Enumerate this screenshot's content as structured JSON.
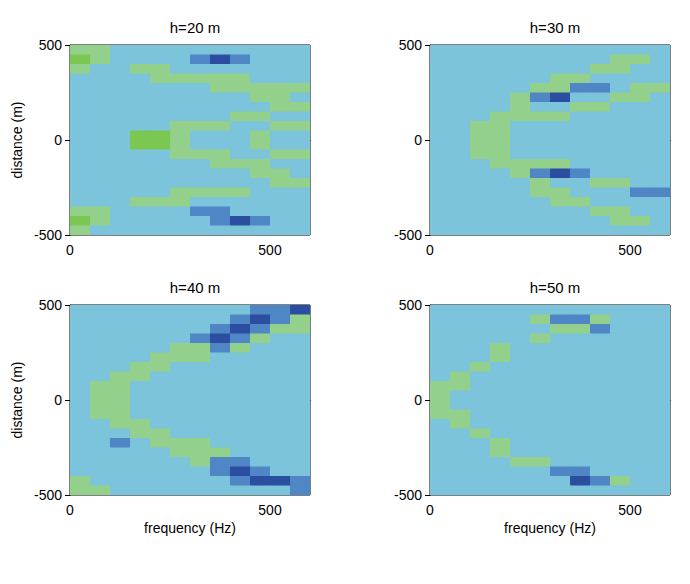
{
  "chart_data": [
    {
      "type": "heatmap",
      "title": "h=20 m",
      "ylabel": "distance (m)",
      "x": [
        25,
        75,
        125,
        175,
        225,
        275,
        325,
        375,
        425,
        475,
        525,
        575
      ],
      "y": [
        475,
        425,
        375,
        325,
        275,
        225,
        175,
        125,
        75,
        25,
        -25,
        -75,
        -125,
        -175,
        -225,
        -275,
        -325,
        -375,
        -425,
        -475
      ],
      "values": [
        [
          1,
          1,
          0,
          0,
          0,
          0,
          0,
          0,
          0,
          0,
          0,
          0
        ],
        [
          2,
          1,
          0,
          0,
          0,
          0,
          -1,
          -2,
          -1,
          0,
          0,
          0
        ],
        [
          1,
          0,
          0,
          1,
          1,
          0,
          0,
          0,
          0,
          0,
          0,
          0
        ],
        [
          0,
          0,
          0,
          0,
          1,
          1,
          1,
          1,
          1,
          0,
          0,
          0
        ],
        [
          0,
          0,
          0,
          0,
          0,
          0,
          0,
          1,
          1,
          1,
          1,
          1
        ],
        [
          0,
          0,
          0,
          0,
          0,
          0,
          0,
          0,
          0,
          1,
          1,
          0
        ],
        [
          0,
          0,
          0,
          0,
          0,
          0,
          0,
          0,
          0,
          0,
          1,
          1
        ],
        [
          0,
          0,
          0,
          0,
          0,
          0,
          0,
          0,
          1,
          1,
          0,
          0
        ],
        [
          0,
          0,
          0,
          0,
          0,
          1,
          1,
          1,
          0,
          0,
          1,
          1
        ],
        [
          0,
          0,
          0,
          2,
          2,
          1,
          0,
          0,
          0,
          1,
          0,
          0
        ],
        [
          0,
          0,
          0,
          2,
          2,
          1,
          0,
          0,
          0,
          1,
          0,
          0
        ],
        [
          0,
          0,
          0,
          0,
          0,
          1,
          1,
          1,
          0,
          0,
          1,
          1
        ],
        [
          0,
          0,
          0,
          0,
          0,
          0,
          0,
          1,
          1,
          1,
          0,
          0
        ],
        [
          0,
          0,
          0,
          0,
          0,
          0,
          0,
          0,
          0,
          1,
          1,
          0
        ],
        [
          0,
          0,
          0,
          0,
          0,
          0,
          0,
          0,
          0,
          0,
          1,
          1
        ],
        [
          0,
          0,
          0,
          0,
          0,
          1,
          1,
          1,
          1,
          0,
          0,
          0
        ],
        [
          0,
          0,
          0,
          1,
          1,
          1,
          0,
          0,
          0,
          0,
          0,
          0
        ],
        [
          1,
          1,
          0,
          0,
          0,
          0,
          -1,
          -1,
          0,
          0,
          0,
          0
        ],
        [
          2,
          1,
          0,
          0,
          0,
          0,
          0,
          -1,
          -2,
          -1,
          0,
          0
        ],
        [
          1,
          0,
          0,
          0,
          0,
          0,
          0,
          0,
          0,
          0,
          0,
          0
        ]
      ],
      "xlim": [
        0,
        600
      ],
      "xticks": [
        0,
        500
      ],
      "ylim": [
        -500,
        500
      ],
      "yticks": [
        -500,
        0,
        500
      ],
      "zlim": [
        -2,
        2
      ],
      "colorscale": [
        "#2b4ea0",
        "#4f86c6",
        "#7cc3dc",
        "#93d08c",
        "#7cc752"
      ]
    },
    {
      "type": "heatmap",
      "title": "h=30 m",
      "x": [
        25,
        75,
        125,
        175,
        225,
        275,
        325,
        375,
        425,
        475,
        525,
        575
      ],
      "y": [
        475,
        425,
        375,
        325,
        275,
        225,
        175,
        125,
        75,
        25,
        -25,
        -75,
        -125,
        -175,
        -225,
        -275,
        -325,
        -375,
        -425,
        -475
      ],
      "values": [
        [
          0,
          0,
          0,
          0,
          0,
          0,
          0,
          0,
          0,
          0,
          0,
          0
        ],
        [
          0,
          0,
          0,
          0,
          0,
          0,
          0,
          0,
          0,
          1,
          1,
          0
        ],
        [
          0,
          0,
          0,
          0,
          0,
          0,
          0,
          0,
          1,
          1,
          0,
          0
        ],
        [
          0,
          0,
          0,
          0,
          0,
          0,
          1,
          1,
          0,
          0,
          0,
          0
        ],
        [
          0,
          0,
          0,
          0,
          0,
          1,
          1,
          -1,
          -1,
          0,
          1,
          1
        ],
        [
          0,
          0,
          0,
          0,
          1,
          -1,
          -2,
          0,
          0,
          1,
          1,
          0
        ],
        [
          0,
          0,
          0,
          0,
          1,
          0,
          0,
          1,
          1,
          0,
          0,
          0
        ],
        [
          0,
          0,
          0,
          1,
          1,
          1,
          1,
          0,
          0,
          0,
          0,
          0
        ],
        [
          0,
          0,
          1,
          1,
          0,
          0,
          0,
          0,
          0,
          0,
          0,
          0
        ],
        [
          0,
          0,
          1,
          1,
          0,
          0,
          0,
          0,
          0,
          0,
          0,
          0
        ],
        [
          0,
          0,
          1,
          1,
          0,
          0,
          0,
          0,
          0,
          0,
          0,
          0
        ],
        [
          0,
          0,
          1,
          1,
          0,
          0,
          0,
          0,
          0,
          0,
          0,
          0
        ],
        [
          0,
          0,
          0,
          1,
          1,
          1,
          1,
          0,
          0,
          0,
          0,
          0
        ],
        [
          0,
          0,
          0,
          0,
          1,
          -1,
          -2,
          -1,
          0,
          0,
          0,
          0
        ],
        [
          0,
          0,
          0,
          0,
          0,
          1,
          0,
          0,
          1,
          1,
          0,
          0
        ],
        [
          0,
          0,
          0,
          0,
          0,
          1,
          1,
          0,
          0,
          0,
          -1,
          -1
        ],
        [
          0,
          0,
          0,
          0,
          0,
          0,
          1,
          1,
          0,
          0,
          0,
          0
        ],
        [
          0,
          0,
          0,
          0,
          0,
          0,
          0,
          0,
          1,
          1,
          0,
          0
        ],
        [
          0,
          0,
          0,
          0,
          0,
          0,
          0,
          0,
          0,
          1,
          1,
          0
        ],
        [
          0,
          0,
          0,
          0,
          0,
          0,
          0,
          0,
          0,
          0,
          0,
          0
        ]
      ],
      "xlim": [
        0,
        600
      ],
      "xticks": [
        0,
        500
      ],
      "ylim": [
        -500,
        500
      ],
      "yticks": [
        -500,
        0,
        500
      ],
      "zlim": [
        -2,
        2
      ],
      "colorscale": [
        "#2b4ea0",
        "#4f86c6",
        "#7cc3dc",
        "#93d08c",
        "#7cc752"
      ]
    },
    {
      "type": "heatmap",
      "title": "h=40 m",
      "ylabel": "distance (m)",
      "xlabel": "frequency (Hz)",
      "x": [
        25,
        75,
        125,
        175,
        225,
        275,
        325,
        375,
        425,
        475,
        525,
        575
      ],
      "y": [
        475,
        425,
        375,
        325,
        275,
        225,
        175,
        125,
        75,
        25,
        -25,
        -75,
        -125,
        -175,
        -225,
        -275,
        -325,
        -375,
        -425,
        -475
      ],
      "values": [
        [
          0,
          0,
          0,
          0,
          0,
          0,
          0,
          0,
          0,
          -1,
          -1,
          -2
        ],
        [
          0,
          0,
          0,
          0,
          0,
          0,
          0,
          0,
          -1,
          -2,
          -1,
          1
        ],
        [
          0,
          0,
          0,
          0,
          0,
          0,
          0,
          -1,
          -2,
          -1,
          1,
          1
        ],
        [
          0,
          0,
          0,
          0,
          0,
          0,
          -1,
          -2,
          -1,
          1,
          0,
          0
        ],
        [
          0,
          0,
          0,
          0,
          0,
          1,
          1,
          -1,
          1,
          0,
          0,
          0
        ],
        [
          0,
          0,
          0,
          0,
          1,
          1,
          1,
          0,
          0,
          0,
          0,
          0
        ],
        [
          0,
          0,
          0,
          1,
          1,
          0,
          0,
          0,
          0,
          0,
          0,
          0
        ],
        [
          0,
          0,
          1,
          1,
          0,
          0,
          0,
          0,
          0,
          0,
          0,
          0
        ],
        [
          0,
          1,
          1,
          0,
          0,
          0,
          0,
          0,
          0,
          0,
          0,
          0
        ],
        [
          0,
          1,
          1,
          0,
          0,
          0,
          0,
          0,
          0,
          0,
          0,
          0
        ],
        [
          0,
          1,
          1,
          0,
          0,
          0,
          0,
          0,
          0,
          0,
          0,
          0
        ],
        [
          0,
          1,
          1,
          0,
          0,
          0,
          0,
          0,
          0,
          0,
          0,
          0
        ],
        [
          0,
          0,
          1,
          1,
          0,
          0,
          0,
          0,
          0,
          0,
          0,
          0
        ],
        [
          0,
          0,
          0,
          1,
          1,
          0,
          0,
          0,
          0,
          0,
          0,
          0
        ],
        [
          0,
          0,
          -1,
          0,
          1,
          1,
          1,
          0,
          0,
          0,
          0,
          0
        ],
        [
          0,
          0,
          0,
          0,
          0,
          1,
          1,
          1,
          0,
          0,
          0,
          0
        ],
        [
          0,
          0,
          0,
          0,
          0,
          0,
          1,
          -1,
          -1,
          0,
          0,
          0
        ],
        [
          0,
          0,
          0,
          0,
          0,
          0,
          0,
          -1,
          -2,
          -1,
          0,
          0
        ],
        [
          1,
          0,
          0,
          0,
          0,
          0,
          0,
          0,
          -1,
          -2,
          -2,
          -1
        ],
        [
          1,
          1,
          0,
          0,
          0,
          0,
          0,
          0,
          0,
          0,
          0,
          -1
        ]
      ],
      "xlim": [
        0,
        600
      ],
      "xticks": [
        0,
        500
      ],
      "ylim": [
        -500,
        500
      ],
      "yticks": [
        -500,
        0,
        500
      ],
      "zlim": [
        -2,
        2
      ],
      "colorscale": [
        "#2b4ea0",
        "#4f86c6",
        "#7cc3dc",
        "#93d08c",
        "#7cc752"
      ]
    },
    {
      "type": "heatmap",
      "title": "h=50 m",
      "xlabel": "frequency (Hz)",
      "x": [
        25,
        75,
        125,
        175,
        225,
        275,
        325,
        375,
        425,
        475,
        525,
        575
      ],
      "y": [
        475,
        425,
        375,
        325,
        275,
        225,
        175,
        125,
        75,
        25,
        -25,
        -75,
        -125,
        -175,
        -225,
        -275,
        -325,
        -375,
        -425,
        -475
      ],
      "values": [
        [
          0,
          0,
          0,
          0,
          0,
          0,
          0,
          0,
          0,
          0,
          0,
          0
        ],
        [
          0,
          0,
          0,
          0,
          0,
          1,
          -1,
          -1,
          1,
          0,
          0,
          0
        ],
        [
          0,
          0,
          0,
          0,
          0,
          0,
          1,
          1,
          -1,
          0,
          0,
          0
        ],
        [
          0,
          0,
          0,
          0,
          0,
          1,
          0,
          0,
          0,
          0,
          0,
          0
        ],
        [
          0,
          0,
          0,
          1,
          0,
          0,
          0,
          0,
          0,
          0,
          0,
          0
        ],
        [
          0,
          0,
          0,
          1,
          0,
          0,
          0,
          0,
          0,
          0,
          0,
          0
        ],
        [
          0,
          0,
          1,
          0,
          0,
          0,
          0,
          0,
          0,
          0,
          0,
          0
        ],
        [
          0,
          1,
          0,
          0,
          0,
          0,
          0,
          0,
          0,
          0,
          0,
          0
        ],
        [
          1,
          1,
          0,
          0,
          0,
          0,
          0,
          0,
          0,
          0,
          0,
          0
        ],
        [
          1,
          0,
          0,
          0,
          0,
          0,
          0,
          0,
          0,
          0,
          0,
          0
        ],
        [
          1,
          0,
          0,
          0,
          0,
          0,
          0,
          0,
          0,
          0,
          0,
          0
        ],
        [
          1,
          1,
          0,
          0,
          0,
          0,
          0,
          0,
          0,
          0,
          0,
          0
        ],
        [
          0,
          1,
          0,
          0,
          0,
          0,
          0,
          0,
          0,
          0,
          0,
          0
        ],
        [
          0,
          0,
          1,
          0,
          0,
          0,
          0,
          0,
          0,
          0,
          0,
          0
        ],
        [
          0,
          0,
          0,
          1,
          0,
          0,
          0,
          0,
          0,
          0,
          0,
          0
        ],
        [
          0,
          0,
          0,
          1,
          0,
          0,
          0,
          0,
          0,
          0,
          0,
          0
        ],
        [
          0,
          0,
          0,
          0,
          1,
          1,
          0,
          0,
          0,
          0,
          0,
          0
        ],
        [
          0,
          0,
          0,
          0,
          0,
          0,
          -1,
          -1,
          0,
          0,
          0,
          0
        ],
        [
          0,
          0,
          0,
          0,
          0,
          0,
          0,
          -2,
          -1,
          1,
          0,
          0
        ],
        [
          0,
          0,
          0,
          0,
          0,
          0,
          0,
          0,
          0,
          0,
          0,
          0
        ]
      ],
      "xlim": [
        0,
        600
      ],
      "xticks": [
        0,
        500
      ],
      "ylim": [
        -500,
        500
      ],
      "yticks": [
        -500,
        0,
        500
      ],
      "zlim": [
        -2,
        2
      ],
      "colorscale": [
        "#2b4ea0",
        "#4f86c6",
        "#7cc3dc",
        "#93d08c",
        "#7cc752"
      ]
    }
  ]
}
